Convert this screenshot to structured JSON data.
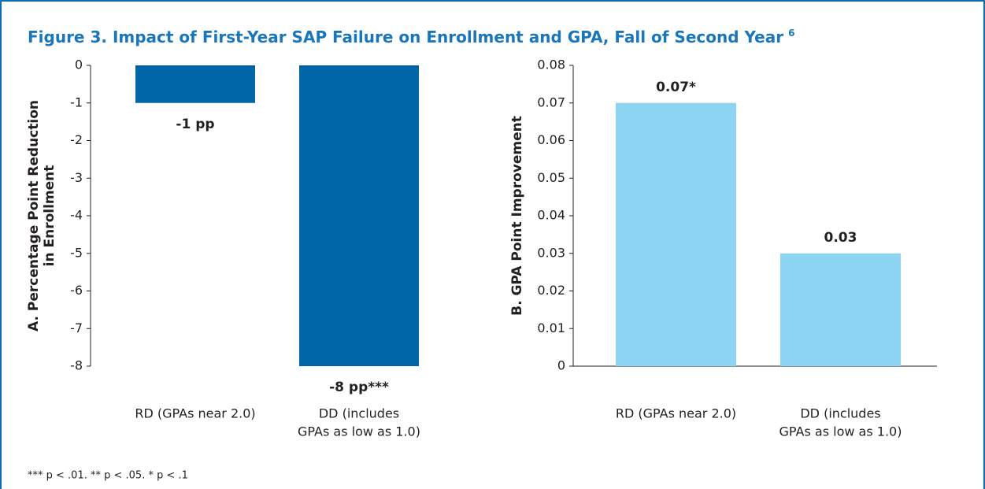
{
  "title": "Figure 3. Impact of First-Year SAP Failure on Enrollment and GPA, Fall of Second Year",
  "title_footnote": "6",
  "footnote": "*** p < .01. ** p < .05. * p < .1",
  "chart_data": [
    {
      "type": "bar",
      "ylabel": [
        "A. Percentage Point Reduction",
        "in Enrollment"
      ],
      "categories": [
        [
          "RD (GPAs near 2.0)"
        ],
        [
          "DD (includes",
          "GPAs as low as 1.0)"
        ]
      ],
      "values": [
        -1,
        -8
      ],
      "value_labels": [
        "-1 pp",
        "-8 pp***"
      ],
      "color": "#0066a8",
      "ylim": [
        -8,
        0
      ],
      "yticks": [
        0,
        -1,
        -2,
        -3,
        -4,
        -5,
        -6,
        -7,
        -8
      ]
    },
    {
      "type": "bar",
      "ylabel": [
        "B. GPA Point Improvement"
      ],
      "categories": [
        [
          "RD (GPAs near 2.0)"
        ],
        [
          "DD (includes",
          "GPAs as low as 1.0)"
        ]
      ],
      "values": [
        0.07,
        0.03
      ],
      "value_labels": [
        "0.07*",
        "0.03"
      ],
      "color": "#8dd3f2",
      "ylim": [
        0,
        0.08
      ],
      "yticks": [
        0,
        0.01,
        0.02,
        0.03,
        0.04,
        0.05,
        0.06,
        0.07,
        0.08
      ]
    }
  ]
}
